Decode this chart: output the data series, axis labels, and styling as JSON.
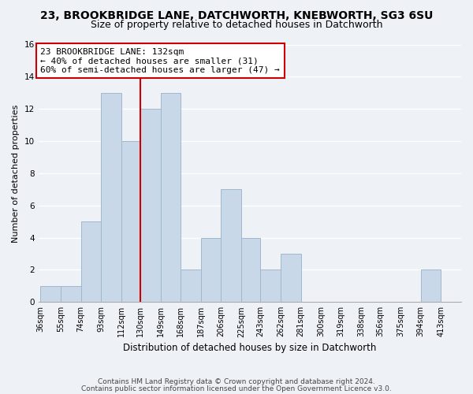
{
  "title": "23, BROOKBRIDGE LANE, DATCHWORTH, KNEBWORTH, SG3 6SU",
  "subtitle": "Size of property relative to detached houses in Datchworth",
  "xlabel": "Distribution of detached houses by size in Datchworth",
  "ylabel": "Number of detached properties",
  "bar_color": "#c8d8e8",
  "bar_edge_color": "#a0b8cc",
  "bins": [
    36,
    55,
    74,
    93,
    112,
    130,
    149,
    168,
    187,
    206,
    225,
    243,
    262,
    281,
    300,
    319,
    338,
    356,
    375,
    394,
    413
  ],
  "counts": [
    1,
    1,
    5,
    13,
    10,
    12,
    13,
    2,
    4,
    7,
    4,
    2,
    3,
    0,
    0,
    0,
    0,
    0,
    0,
    2
  ],
  "property_line_x": 130,
  "property_line_color": "#cc0000",
  "annotation_text": "23 BROOKBRIDGE LANE: 132sqm\n← 40% of detached houses are smaller (31)\n60% of semi-detached houses are larger (47) →",
  "annotation_box_color": "#ffffff",
  "annotation_box_edge_color": "#cc0000",
  "ylim": [
    0,
    16
  ],
  "yticks": [
    0,
    2,
    4,
    6,
    8,
    10,
    12,
    14,
    16
  ],
  "footnote_line1": "Contains HM Land Registry data © Crown copyright and database right 2024.",
  "footnote_line2": "Contains public sector information licensed under the Open Government Licence v3.0.",
  "background_color": "#eef2f7",
  "grid_color": "#ffffff",
  "title_fontsize": 10,
  "subtitle_fontsize": 9,
  "axis_fontsize": 8,
  "tick_fontsize": 7,
  "footnote_fontsize": 6.5
}
